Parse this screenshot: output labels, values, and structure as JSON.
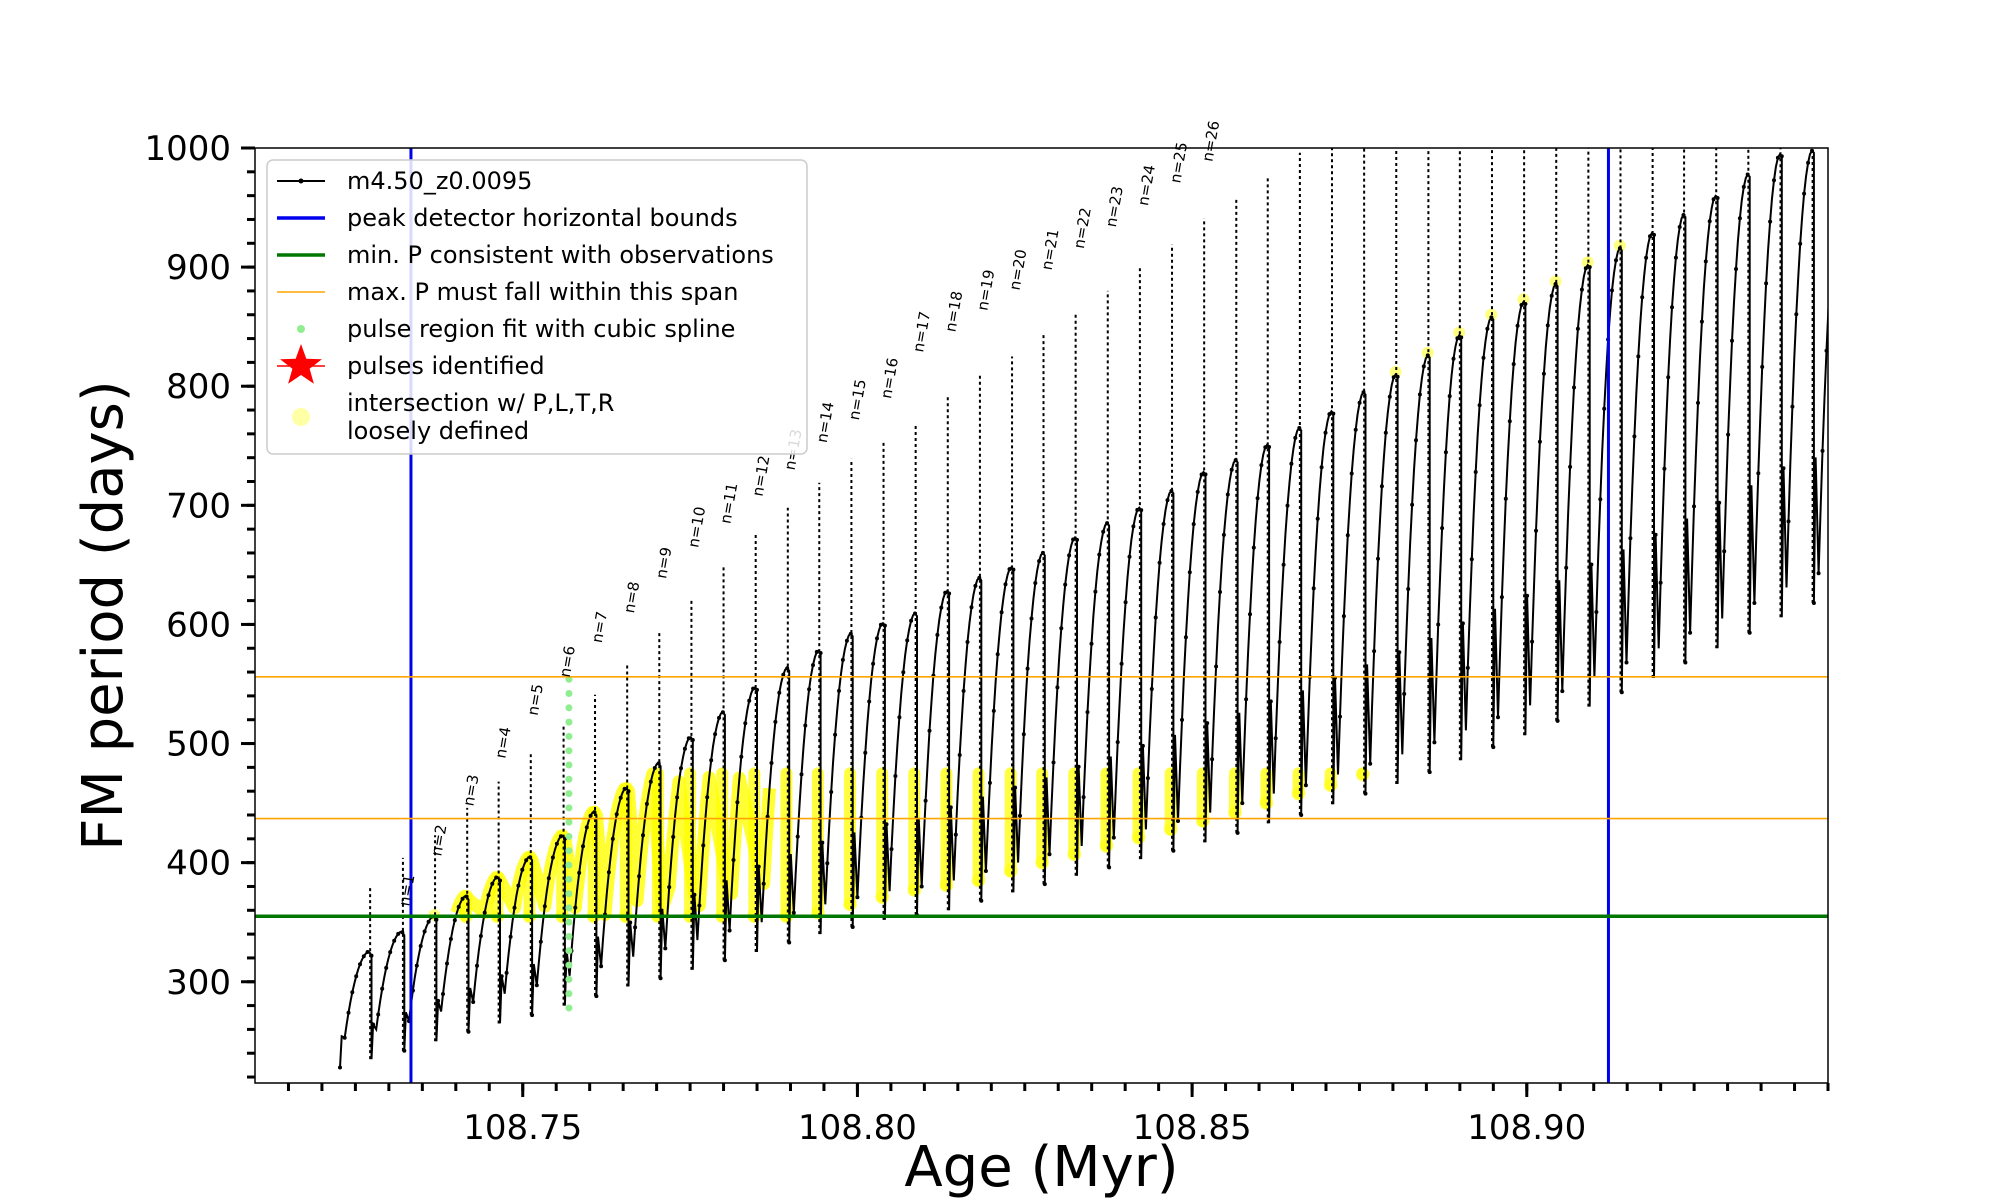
{
  "chart_data": {
    "type": "line",
    "title": "",
    "xlabel": "Age (Myr)",
    "ylabel": "FM period (days)",
    "xlim": [
      108.71,
      108.945
    ],
    "ylim": [
      215,
      1000
    ],
    "x_ticks": [
      108.75,
      108.8,
      108.85,
      108.9
    ],
    "x_tick_labels": [
      "108.75",
      "108.80",
      "108.85",
      "108.90"
    ],
    "y_ticks": [
      300,
      400,
      500,
      600,
      700,
      800,
      900,
      1000
    ],
    "y_tick_labels": [
      "300",
      "400",
      "500",
      "600",
      "700",
      "800",
      "900",
      "1000"
    ],
    "grid": false,
    "legend_position": "top-left",
    "colors": {
      "model": "#000000",
      "bounds": "#0000ee",
      "min_period": "#007700",
      "max_span": "#ffa500",
      "spline": "#90ee90",
      "pulses": "#ff0000",
      "intersection": "#ffff00"
    },
    "legend": [
      {
        "label": "m4.50_z0.0095",
        "marker": "line-dot",
        "color": "#000000"
      },
      {
        "label": "peak detector horizontal bounds",
        "marker": "line",
        "color": "#0000ee"
      },
      {
        "label": "min. P consistent with observations",
        "marker": "line",
        "color": "#007700"
      },
      {
        "label": "max. P must fall within this span",
        "marker": "thin-line",
        "color": "#ffa500"
      },
      {
        "label": "pulse region fit with cubic spline",
        "marker": "dot",
        "color": "#90ee90"
      },
      {
        "label": "pulses identified",
        "marker": "star",
        "color": "#ff0000"
      },
      {
        "label": "intersection w/ P,L,T,R",
        "label2": "loosely defined",
        "marker": "big-dot",
        "color": "#ffff00"
      }
    ],
    "vertical_lines": [
      108.7333,
      108.9122
    ],
    "horizontal_lines": {
      "min_period": 355,
      "max_span": [
        437,
        556
      ]
    },
    "series": [
      {
        "name": "m4.50_z0.0095",
        "pulses": [
          {
            "age": 108.7227,
            "peak": 310,
            "trough": 228
          },
          {
            "age": 108.7274,
            "peak": 326,
            "trough": 235
          },
          {
            "age": 108.7323,
            "peak": 343,
            "trough": 242
          },
          {
            "age": 108.7371,
            "peak": 356,
            "trough": 250
          },
          {
            "age": 108.7419,
            "peak": 373,
            "trough": 258
          },
          {
            "age": 108.7466,
            "peak": 389,
            "trough": 265
          },
          {
            "age": 108.7514,
            "peak": 406,
            "trough": 272
          },
          {
            "age": 108.7563,
            "peak": 424,
            "trough": 280
          },
          {
            "age": 108.761,
            "peak": 444,
            "trough": 288
          },
          {
            "age": 108.7658,
            "peak": 464,
            "trough": 296
          },
          {
            "age": 108.7706,
            "peak": 485,
            "trough": 303
          },
          {
            "age": 108.7754,
            "peak": 507,
            "trough": 310
          },
          {
            "age": 108.7802,
            "peak": 528,
            "trough": 318
          },
          {
            "age": 108.785,
            "peak": 549,
            "trough": 325
          },
          {
            "age": 108.7898,
            "peak": 565,
            "trough": 333
          },
          {
            "age": 108.7945,
            "peak": 580,
            "trough": 340
          },
          {
            "age": 108.7993,
            "peak": 594,
            "trough": 346
          },
          {
            "age": 108.8041,
            "peak": 603,
            "trough": 352
          },
          {
            "age": 108.8089,
            "peak": 611,
            "trough": 356
          },
          {
            "age": 108.8137,
            "peak": 630,
            "trough": 360
          },
          {
            "age": 108.8185,
            "peak": 641,
            "trough": 368
          },
          {
            "age": 108.8233,
            "peak": 650,
            "trough": 375
          },
          {
            "age": 108.828,
            "peak": 662,
            "trough": 382
          },
          {
            "age": 108.8328,
            "peak": 675,
            "trough": 389
          },
          {
            "age": 108.8376,
            "peak": 687,
            "trough": 396
          },
          {
            "age": 108.8424,
            "peak": 700,
            "trough": 403
          },
          {
            "age": 108.8472,
            "peak": 714,
            "trough": 410
          },
          {
            "age": 108.852,
            "peak": 730,
            "trough": 417
          },
          {
            "age": 108.8568,
            "peak": 740,
            "trough": 425
          },
          {
            "age": 108.8615,
            "peak": 753,
            "trough": 433
          },
          {
            "age": 108.8663,
            "peak": 767,
            "trough": 440
          },
          {
            "age": 108.8711,
            "peak": 781,
            "trough": 449
          },
          {
            "age": 108.8759,
            "peak": 797,
            "trough": 458
          },
          {
            "age": 108.8807,
            "peak": 812,
            "trough": 466
          },
          {
            "age": 108.8855,
            "peak": 828,
            "trough": 476
          },
          {
            "age": 108.8902,
            "peak": 845,
            "trough": 486
          },
          {
            "age": 108.895,
            "peak": 860,
            "trough": 497
          },
          {
            "age": 108.8998,
            "peak": 873,
            "trough": 507
          },
          {
            "age": 108.9046,
            "peak": 888,
            "trough": 519
          },
          {
            "age": 108.9094,
            "peak": 904,
            "trough": 531
          },
          {
            "age": 108.9142,
            "peak": 918,
            "trough": 543
          },
          {
            "age": 108.919,
            "peak": 931,
            "trough": 555
          },
          {
            "age": 108.9237,
            "peak": 946,
            "trough": 568
          },
          {
            "age": 108.9285,
            "peak": 962,
            "trough": 580
          },
          {
            "age": 108.9333,
            "peak": 980,
            "trough": 593
          },
          {
            "age": 108.9381,
            "peak": 997,
            "trough": 606
          },
          {
            "age": 108.9429,
            "peak": 1000,
            "trough": 618
          },
          {
            "age": 108.9477,
            "peak": 1000,
            "trough": 630
          }
        ]
      }
    ],
    "pulse_annotations": [
      {
        "label": "n=1",
        "age": 108.733,
        "period": 363
      },
      {
        "label": "n=2",
        "age": 108.7378,
        "period": 405
      },
      {
        "label": "n=3",
        "age": 108.7426,
        "period": 447
      },
      {
        "label": "n=4",
        "age": 108.7474,
        "period": 487
      },
      {
        "label": "n=5",
        "age": 108.7522,
        "period": 523
      },
      {
        "label": "n=6",
        "age": 108.757,
        "period": 555
      },
      {
        "label": "n=7",
        "age": 108.7618,
        "period": 584
      },
      {
        "label": "n=8",
        "age": 108.7666,
        "period": 609
      },
      {
        "label": "n=9",
        "age": 108.7714,
        "period": 638
      },
      {
        "label": "n=10",
        "age": 108.7762,
        "period": 664
      },
      {
        "label": "n=11",
        "age": 108.781,
        "period": 684
      },
      {
        "label": "n=12",
        "age": 108.7858,
        "period": 707
      },
      {
        "label": "n=13",
        "age": 108.7906,
        "period": 729
      },
      {
        "label": "n=14",
        "age": 108.7954,
        "period": 752
      },
      {
        "label": "n=15",
        "age": 108.8002,
        "period": 771
      },
      {
        "label": "n=16",
        "age": 108.805,
        "period": 789
      },
      {
        "label": "n=17",
        "age": 108.8098,
        "period": 828
      },
      {
        "label": "n=18",
        "age": 108.8146,
        "period": 845
      },
      {
        "label": "n=19",
        "age": 108.8194,
        "period": 863
      },
      {
        "label": "n=20",
        "age": 108.8242,
        "period": 880
      },
      {
        "label": "n=21",
        "age": 108.829,
        "period": 897
      },
      {
        "label": "n=22",
        "age": 108.8338,
        "period": 915
      },
      {
        "label": "n=23",
        "age": 108.8386,
        "period": 933
      },
      {
        "label": "n=24",
        "age": 108.8434,
        "period": 951
      },
      {
        "label": "n=25",
        "age": 108.8482,
        "period": 970
      },
      {
        "label": "n=26",
        "age": 108.853,
        "period": 988
      }
    ],
    "spline_fit": {
      "age": 108.7569,
      "period_min": 278,
      "period_max": 557
    }
  }
}
